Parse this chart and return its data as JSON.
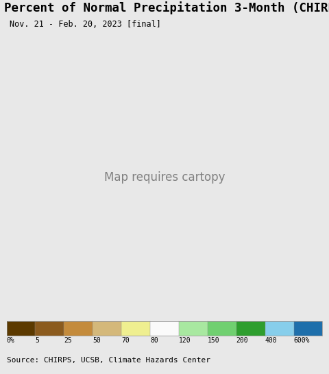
{
  "title": "Percent of Normal Precipitation 3-Month (CHIRPS)",
  "subtitle": "Nov. 21 - Feb. 20, 2023 [final]",
  "source_text": "Source: CHIRPS, UCSB, Climate Hazards Center",
  "colorbar_labels": [
    "0%",
    "5",
    "25",
    "50",
    "70",
    "80",
    "120",
    "150",
    "200",
    "400",
    "600%"
  ],
  "colorbar_colors": [
    "#5c3a00",
    "#8B5B1E",
    "#C48B3C",
    "#D4B87A",
    "#EFEF90",
    "#FAFAFA",
    "#A8E8A0",
    "#70D070",
    "#2E9E2E",
    "#87CEEB",
    "#1E6FAB"
  ],
  "colorbar_bounds": [
    0,
    5,
    25,
    50,
    70,
    80,
    120,
    150,
    200,
    400,
    600
  ],
  "background_color": "#e8e8e8",
  "land_outside_color": "#e8e8e8",
  "ocean_color": "#b8e8f0",
  "title_fontsize": 12.5,
  "subtitle_fontsize": 8.5,
  "source_fontsize": 8.0,
  "fig_width": 4.8,
  "fig_height": 5.46,
  "map_extent": [
    57.0,
    101.5,
    5.5,
    39.0
  ],
  "country_colors": {
    "India_north": "#D4B87A",
    "India_central": "#C48B3C",
    "India_south": "#5c3a00",
    "Pakistan": "#EFEF90",
    "Afghanistan": "#D4B87A",
    "Nepal": "#C48B3C",
    "Bangladesh": "#5c3a00",
    "NE_India": "#5c3a00",
    "Myanmar": "#C48B3C",
    "Tibet": "#C48B3C"
  }
}
